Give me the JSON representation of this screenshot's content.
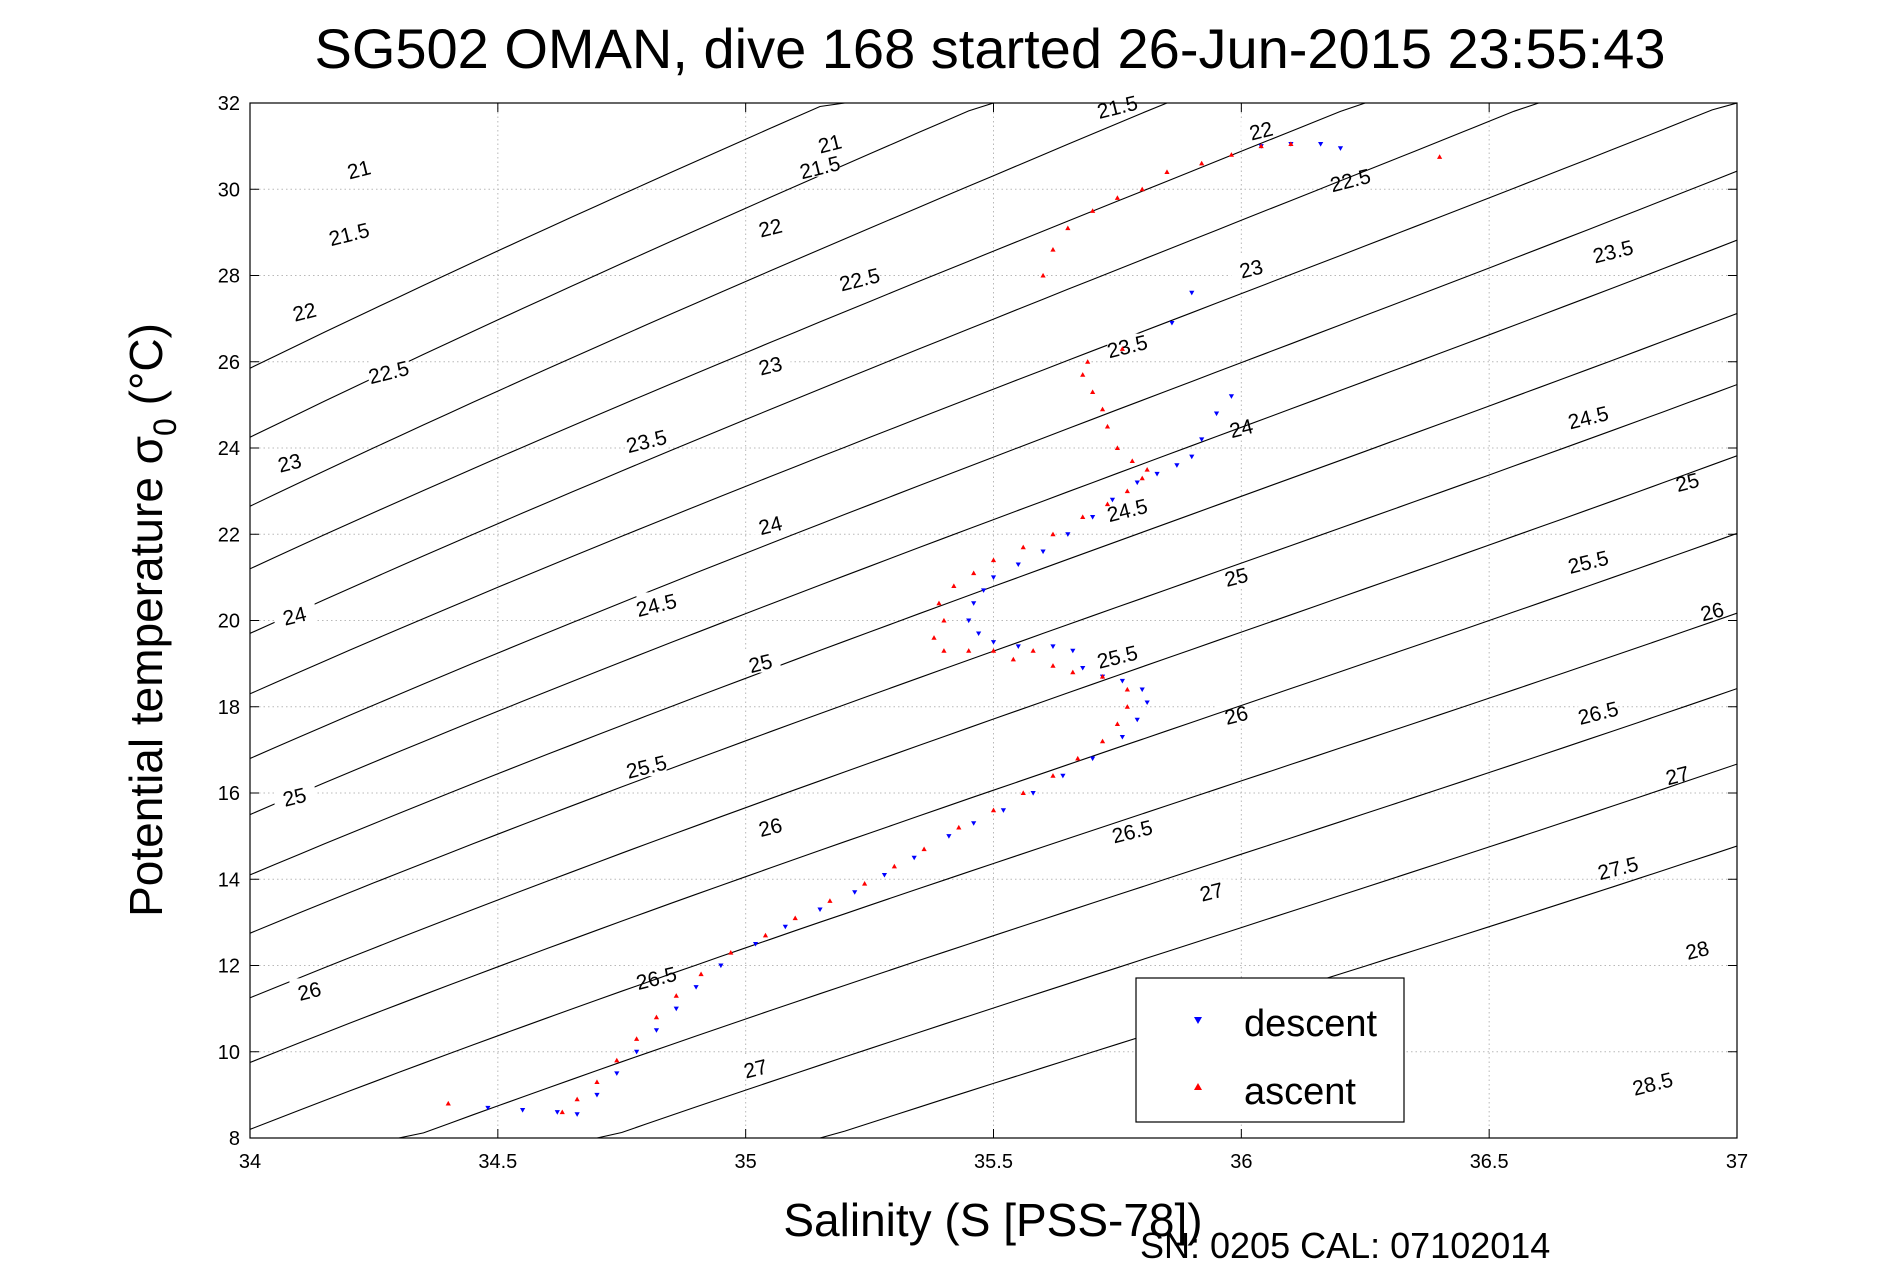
{
  "chart_data": {
    "type": "scatter",
    "title": "SG502 OMAN, dive 168 started 26-Jun-2015 23:55:43",
    "xlabel": "Salinity (S [PSS-78])",
    "ylabel": "Potential temperature σ",
    "ylabel_subscript": "0",
    "ylabel_suffix": " (°C)",
    "xlim": [
      34,
      37
    ],
    "ylim": [
      8,
      32
    ],
    "xticks": [
      34,
      34.5,
      35,
      35.5,
      36,
      36.5,
      37
    ],
    "xtick_labels": [
      "34",
      "34.5",
      "35",
      "35.5",
      "36",
      "36.5",
      "37"
    ],
    "yticks": [
      8,
      10,
      12,
      14,
      16,
      18,
      20,
      22,
      24,
      26,
      28,
      30,
      32
    ],
    "ytick_labels": [
      "8",
      "10",
      "12",
      "14",
      "16",
      "18",
      "20",
      "22",
      "24",
      "26",
      "28",
      "30",
      "32"
    ],
    "grid": true,
    "legend": {
      "placement": "bottom-right",
      "entries": [
        {
          "label": "descent",
          "color": "#0000ff",
          "marker": "triangle-down"
        },
        {
          "label": "ascent",
          "color": "#ff0000",
          "marker": "triangle-up"
        }
      ]
    },
    "series": [
      {
        "name": "descent",
        "color": "#0000ff",
        "marker": "triangle-down",
        "points": [
          [
            34.48,
            8.7
          ],
          [
            34.55,
            8.65
          ],
          [
            34.62,
            8.6
          ],
          [
            34.66,
            8.55
          ],
          [
            34.7,
            9.0
          ],
          [
            34.74,
            9.5
          ],
          [
            34.78,
            10.0
          ],
          [
            34.82,
            10.5
          ],
          [
            34.86,
            11.0
          ],
          [
            34.9,
            11.5
          ],
          [
            34.95,
            12.0
          ],
          [
            35.02,
            12.5
          ],
          [
            35.08,
            12.9
          ],
          [
            35.15,
            13.3
          ],
          [
            35.22,
            13.7
          ],
          [
            35.28,
            14.1
          ],
          [
            35.34,
            14.5
          ],
          [
            35.41,
            15.0
          ],
          [
            35.46,
            15.3
          ],
          [
            35.52,
            15.6
          ],
          [
            35.58,
            16.0
          ],
          [
            35.64,
            16.4
          ],
          [
            35.7,
            16.8
          ],
          [
            35.76,
            17.3
          ],
          [
            35.79,
            17.7
          ],
          [
            35.81,
            18.1
          ],
          [
            35.8,
            18.4
          ],
          [
            35.76,
            18.6
          ],
          [
            35.72,
            18.7
          ],
          [
            35.68,
            18.9
          ],
          [
            35.66,
            19.3
          ],
          [
            35.62,
            19.4
          ],
          [
            35.55,
            19.4
          ],
          [
            35.5,
            19.5
          ],
          [
            35.47,
            19.7
          ],
          [
            35.45,
            20.0
          ],
          [
            35.46,
            20.4
          ],
          [
            35.48,
            20.7
          ],
          [
            35.5,
            21.0
          ],
          [
            35.55,
            21.3
          ],
          [
            35.6,
            21.6
          ],
          [
            35.65,
            22.0
          ],
          [
            35.7,
            22.4
          ],
          [
            35.74,
            22.8
          ],
          [
            35.79,
            23.2
          ],
          [
            35.83,
            23.4
          ],
          [
            35.87,
            23.6
          ],
          [
            35.9,
            23.8
          ],
          [
            35.92,
            24.2
          ],
          [
            35.95,
            24.8
          ],
          [
            35.98,
            25.2
          ],
          [
            35.86,
            26.9
          ],
          [
            35.9,
            27.6
          ],
          [
            36.04,
            31.0
          ],
          [
            36.1,
            31.05
          ],
          [
            36.16,
            31.05
          ],
          [
            36.2,
            30.95
          ]
        ]
      },
      {
        "name": "ascent",
        "color": "#ff0000",
        "marker": "triangle-up",
        "points": [
          [
            34.4,
            8.8
          ],
          [
            34.63,
            8.6
          ],
          [
            34.66,
            8.9
          ],
          [
            34.7,
            9.3
          ],
          [
            34.74,
            9.8
          ],
          [
            34.78,
            10.3
          ],
          [
            34.82,
            10.8
          ],
          [
            34.86,
            11.3
          ],
          [
            34.91,
            11.8
          ],
          [
            34.97,
            12.3
          ],
          [
            35.04,
            12.7
          ],
          [
            35.1,
            13.1
          ],
          [
            35.17,
            13.5
          ],
          [
            35.24,
            13.9
          ],
          [
            35.3,
            14.3
          ],
          [
            35.36,
            14.7
          ],
          [
            35.43,
            15.2
          ],
          [
            35.5,
            15.6
          ],
          [
            35.56,
            16.0
          ],
          [
            35.62,
            16.4
          ],
          [
            35.67,
            16.8
          ],
          [
            35.72,
            17.2
          ],
          [
            35.75,
            17.6
          ],
          [
            35.77,
            18.0
          ],
          [
            35.77,
            18.4
          ],
          [
            35.72,
            18.7
          ],
          [
            35.66,
            18.8
          ],
          [
            35.62,
            18.95
          ],
          [
            35.58,
            19.3
          ],
          [
            35.54,
            19.1
          ],
          [
            35.5,
            19.3
          ],
          [
            35.45,
            19.3
          ],
          [
            35.4,
            19.3
          ],
          [
            35.38,
            19.6
          ],
          [
            35.4,
            20.0
          ],
          [
            35.39,
            20.4
          ],
          [
            35.42,
            20.8
          ],
          [
            35.46,
            21.1
          ],
          [
            35.5,
            21.4
          ],
          [
            35.56,
            21.7
          ],
          [
            35.62,
            22.0
          ],
          [
            35.68,
            22.4
          ],
          [
            35.73,
            22.7
          ],
          [
            35.77,
            23.0
          ],
          [
            35.8,
            23.3
          ],
          [
            35.81,
            23.5
          ],
          [
            35.78,
            23.7
          ],
          [
            35.75,
            24.0
          ],
          [
            35.73,
            24.5
          ],
          [
            35.72,
            24.9
          ],
          [
            35.7,
            25.3
          ],
          [
            35.68,
            25.7
          ],
          [
            35.69,
            26.0
          ],
          [
            35.76,
            26.3
          ],
          [
            35.6,
            28.0
          ],
          [
            35.62,
            28.6
          ],
          [
            35.65,
            29.1
          ],
          [
            35.7,
            29.5
          ],
          [
            35.75,
            29.8
          ],
          [
            35.8,
            30.0
          ],
          [
            35.85,
            30.4
          ],
          [
            35.92,
            30.6
          ],
          [
            35.98,
            30.8
          ],
          [
            36.04,
            31.0
          ],
          [
            36.1,
            31.05
          ],
          [
            36.4,
            30.75
          ]
        ]
      }
    ],
    "contours": {
      "label_values": [
        "21",
        "21.5",
        "22",
        "22.5",
        "23",
        "23.5",
        "24",
        "24.5",
        "25",
        "25.5",
        "26",
        "26.5",
        "27",
        "27.5",
        "28",
        "28.5"
      ],
      "lines": [
        {
          "level": 21,
          "label": "21"
        },
        {
          "level": 21.5,
          "label": "21.5"
        },
        {
          "level": 22,
          "label": "22"
        },
        {
          "level": 22.5,
          "label": "22.5"
        },
        {
          "level": 23,
          "label": "23"
        },
        {
          "level": 23.5,
          "label": "23.5"
        },
        {
          "level": 24,
          "label": "24"
        },
        {
          "level": 24.5,
          "label": "24.5"
        },
        {
          "level": 25,
          "label": "25"
        },
        {
          "level": 25.5,
          "label": "25.5"
        },
        {
          "level": 26,
          "label": "26"
        },
        {
          "level": 26.5,
          "label": "26.5"
        },
        {
          "level": 27,
          "label": "27"
        },
        {
          "level": 27.5,
          "label": "27.5"
        },
        {
          "level": 28,
          "label": "28"
        },
        {
          "level": 28.5,
          "label": "28.5"
        }
      ]
    }
  },
  "footer": {
    "serial": "SN: 0205  CAL: 07102014"
  }
}
